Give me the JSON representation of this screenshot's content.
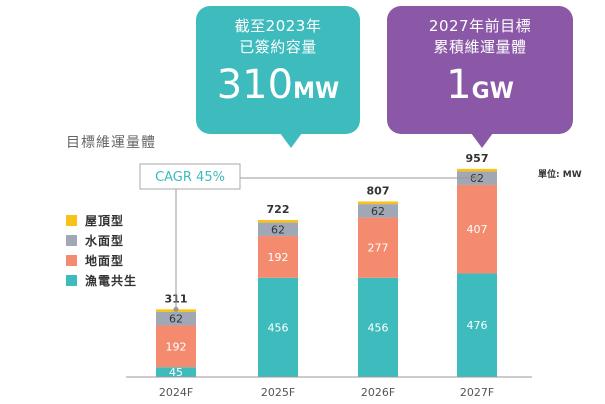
{
  "callouts": [
    {
      "line1": "截至2023年",
      "line2": "已簽約容量",
      "value": "310",
      "unit": "MW",
      "color": "#3dbbbd"
    },
    {
      "line1": "2027年前目標",
      "line2": "累積維運量體",
      "value": "1",
      "unit": "GW",
      "color": "#8a58a6"
    }
  ],
  "section_title": "目標維運量體",
  "unit_label": "單位: MW",
  "cagr_label": "CAGR 45%",
  "chart_data": {
    "type": "bar",
    "stacked": true,
    "title": "目標維運量體",
    "ylabel": "MW",
    "categories": [
      "2024F",
      "2025F",
      "2026F",
      "2027F"
    ],
    "series": [
      {
        "name": "漁電共生",
        "color": "#3dbbbd",
        "values": [
          45,
          456,
          456,
          476
        ]
      },
      {
        "name": "地面型",
        "color": "#f58b6e",
        "values": [
          192,
          192,
          277,
          407
        ]
      },
      {
        "name": "水面型",
        "color": "#a0a8b6",
        "values": [
          62,
          62,
          62,
          62
        ]
      },
      {
        "name": "屋頂型",
        "color": "#f7c31b",
        "values": [
          12,
          12,
          12,
          12
        ]
      }
    ],
    "totals": [
      311,
      722,
      807,
      957
    ],
    "legend_order": [
      "屋頂型",
      "水面型",
      "地面型",
      "漁電共生"
    ],
    "ylim": [
      0,
      1000
    ]
  }
}
